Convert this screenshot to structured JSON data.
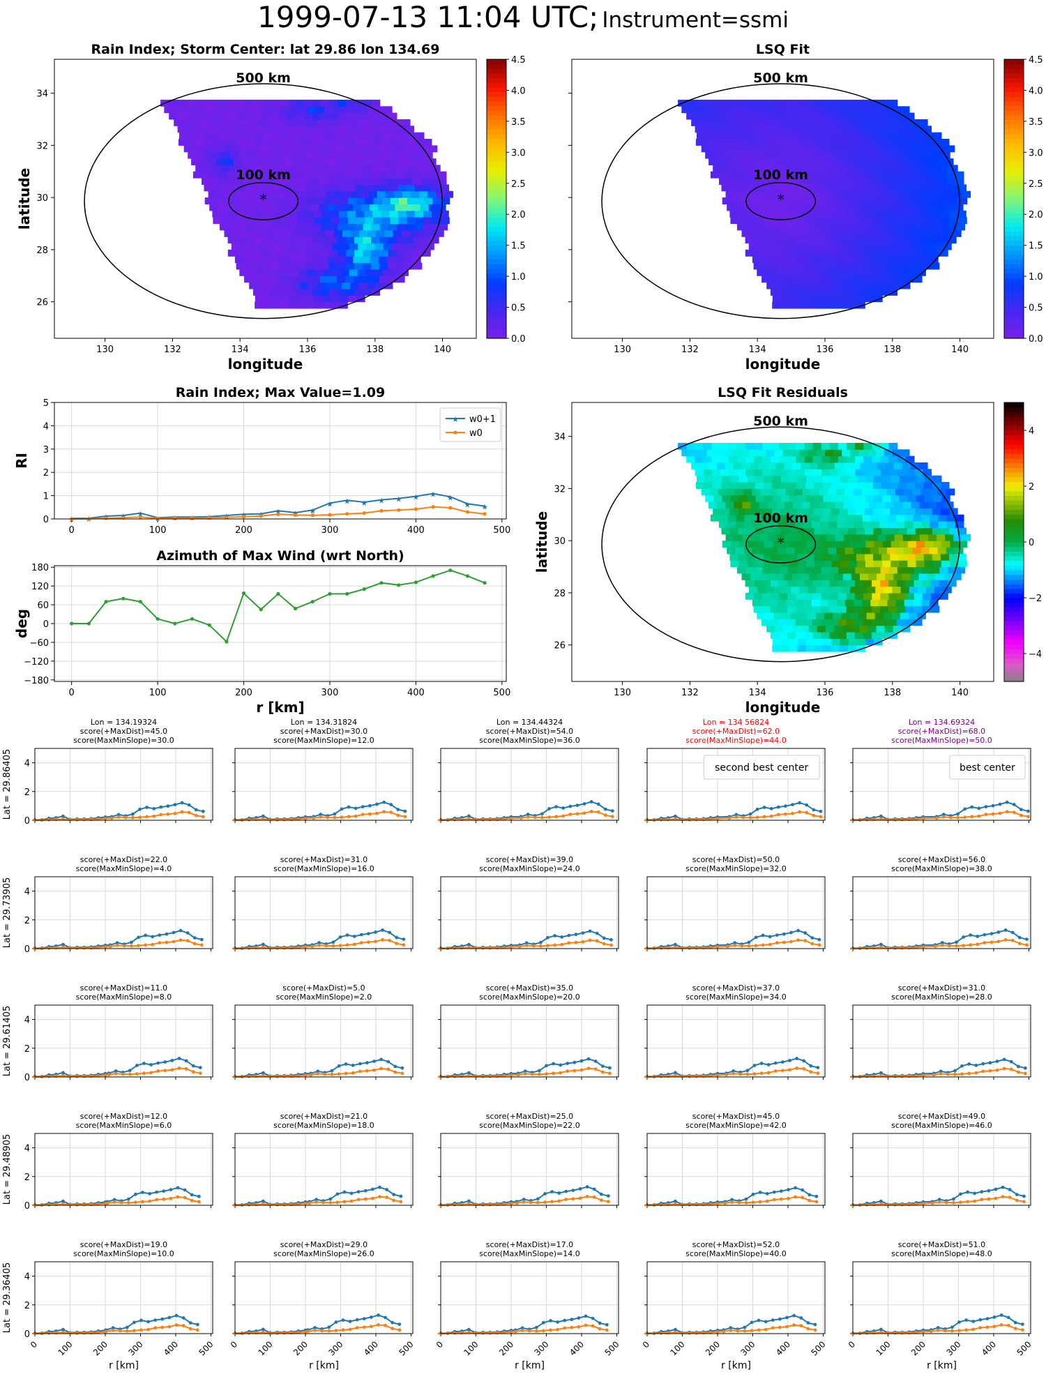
{
  "suptitle": {
    "time": "1999-07-13 11:04 UTC;",
    "instrument": "Instrument=ssmi"
  },
  "colors": {
    "w0p1": "#1f77b4",
    "w0": "#ff7f0e",
    "azimuth": "#2ca02c",
    "second_best": "#ff0000",
    "best": "#800080"
  },
  "chart_data": [
    {
      "id": "rain-index-map",
      "type": "heatmap",
      "title": "Rain Index; Storm Center: lat 29.86 lon 134.69",
      "xlabel": "longitude",
      "ylabel": "latitude",
      "xlim": [
        128.5,
        141
      ],
      "ylim": [
        24.6,
        35.3
      ],
      "xticks": [
        "130",
        "132",
        "134",
        "136",
        "138",
        "140"
      ],
      "yticks": [
        "26",
        "28",
        "30",
        "32",
        "34"
      ],
      "center": {
        "lon": 134.69,
        "lat": 29.86
      },
      "ring_labels": [
        "500 km",
        "100 km"
      ],
      "colorbar": {
        "min": 0,
        "max": 4.5,
        "ticks": [
          "0.0",
          "0.5",
          "1.0",
          "1.5",
          "2.0",
          "2.5",
          "3.0",
          "3.5",
          "4.0",
          "4.5"
        ],
        "colormap": "rainbow"
      }
    },
    {
      "id": "lsq-fit-map",
      "type": "heatmap",
      "title": "LSQ Fit",
      "xlabel": "longitude",
      "ylabel": "",
      "xlim": [
        128.5,
        141
      ],
      "ylim": [
        24.6,
        35.3
      ],
      "xticks": [
        "130",
        "132",
        "134",
        "136",
        "138",
        "140"
      ],
      "yticks": [],
      "center": {
        "lon": 134.69,
        "lat": 29.86
      },
      "ring_labels": [
        "500 km",
        "100 km"
      ],
      "colorbar": {
        "min": 0,
        "max": 4.5,
        "ticks": [
          "0.0",
          "0.5",
          "1.0",
          "1.5",
          "2.0",
          "2.5",
          "3.0",
          "3.5",
          "4.0",
          "4.5"
        ],
        "colormap": "rainbow"
      }
    },
    {
      "id": "lsq-residual-map",
      "type": "heatmap",
      "title": "LSQ Fit Residuals",
      "xlabel": "longitude",
      "ylabel": "latitude",
      "xlim": [
        128.5,
        141
      ],
      "ylim": [
        24.6,
        35.3
      ],
      "xticks": [
        "130",
        "132",
        "134",
        "136",
        "138",
        "140"
      ],
      "yticks": [
        "26",
        "28",
        "30",
        "32",
        "34"
      ],
      "center": {
        "lon": 134.69,
        "lat": 29.86
      },
      "ring_labels": [
        "500 km",
        "100 km"
      ],
      "colorbar": {
        "min": -5,
        "max": 5,
        "ticks": [
          "−4",
          "−2",
          "0",
          "2",
          "4"
        ],
        "colormap": "diverging"
      }
    },
    {
      "id": "rain-index-profile",
      "type": "line",
      "title": "Rain Index; Max Value=1.09",
      "xlabel": "",
      "ylabel": "RI",
      "xlim": [
        -20,
        505
      ],
      "ylim": [
        0,
        5
      ],
      "xticks": [
        "0",
        "100",
        "200",
        "300",
        "400",
        "500"
      ],
      "yticks": [
        "0",
        "1",
        "2",
        "3",
        "4",
        "5"
      ],
      "legend": "top-right",
      "x": [
        0,
        20,
        40,
        60,
        80,
        100,
        120,
        140,
        160,
        180,
        200,
        220,
        240,
        260,
        280,
        300,
        320,
        340,
        360,
        380,
        400,
        420,
        440,
        460,
        480
      ],
      "series": [
        {
          "name": "w0+1",
          "values": [
            0.02,
            0.03,
            0.12,
            0.15,
            0.25,
            0.05,
            0.08,
            0.08,
            0.1,
            0.15,
            0.2,
            0.22,
            0.35,
            0.27,
            0.38,
            0.68,
            0.8,
            0.72,
            0.82,
            0.88,
            0.97,
            1.09,
            0.95,
            0.65,
            0.55
          ]
        },
        {
          "name": "w0",
          "values": [
            0,
            0.01,
            0.03,
            0.05,
            0.08,
            0.02,
            0.03,
            0.04,
            0.05,
            0.07,
            0.1,
            0.13,
            0.2,
            0.17,
            0.16,
            0.18,
            0.22,
            0.25,
            0.35,
            0.38,
            0.42,
            0.52,
            0.48,
            0.3,
            0.22
          ]
        }
      ]
    },
    {
      "id": "azimuth-max-wind",
      "type": "line",
      "title": "Azimuth of Max Wind (wrt North)",
      "xlabel": "r [km]",
      "ylabel": "deg",
      "xlim": [
        -20,
        505
      ],
      "ylim": [
        -185,
        185
      ],
      "xticks": [
        "0",
        "100",
        "200",
        "300",
        "400",
        "500"
      ],
      "yticks": [
        "180",
        "120",
        "60",
        "0",
        "−60",
        "−120",
        "−180"
      ],
      "x": [
        0,
        20,
        40,
        60,
        80,
        100,
        120,
        140,
        160,
        180,
        200,
        220,
        240,
        260,
        280,
        300,
        320,
        340,
        360,
        380,
        400,
        420,
        440,
        460,
        480
      ],
      "series": [
        {
          "values": [
            0,
            0,
            70,
            80,
            70,
            15,
            0,
            15,
            -5,
            -58,
            97,
            45,
            95,
            48,
            70,
            95,
            95,
            110,
            130,
            123,
            132,
            152,
            170,
            152,
            130
          ]
        }
      ]
    }
  ],
  "grid": {
    "lon_titles": [
      "Lon = 134.19324",
      "Lon = 134.31824",
      "Lon = 134.44324",
      "Lon = 134 56824",
      "Lon = 134.69324"
    ],
    "lat_labels": [
      "Lat = 29.86405",
      "Lat = 29.73905",
      "Lat = 29.61405",
      "Lat = 29.48905",
      "Lat = 29.36405"
    ],
    "scores": [
      [
        [
          "score(+MaxDist)=45.0",
          "score(MaxMinSlope)=30.0"
        ],
        [
          "score(+MaxDist)=30.0",
          "score(MaxMinSlope)=12.0"
        ],
        [
          "score(+MaxDist)=54.0",
          "score(MaxMinSlope)=36.0"
        ],
        [
          "score(+MaxDist)=62.0",
          "score(MaxMinSlope)=44.0"
        ],
        [
          "score(+MaxDist)=68.0",
          "score(MaxMinSlope)=50.0"
        ]
      ],
      [
        [
          "score(+MaxDist)=22.0",
          "score(MaxMinSlope)=4.0"
        ],
        [
          "score(+MaxDist)=31.0",
          "score(MaxMinSlope)=16.0"
        ],
        [
          "score(+MaxDist)=39.0",
          "score(MaxMinSlope)=24.0"
        ],
        [
          "score(+MaxDist)=50.0",
          "score(MaxMinSlope)=32.0"
        ],
        [
          "score(+MaxDist)=56.0",
          "score(MaxMinSlope)=38.0"
        ]
      ],
      [
        [
          "score(+MaxDist)=11.0",
          "score(MaxMinSlope)=8.0"
        ],
        [
          "score(+MaxDist)=5.0",
          "score(MaxMinSlope)=2.0"
        ],
        [
          "score(+MaxDist)=35.0",
          "score(MaxMinSlope)=20.0"
        ],
        [
          "score(+MaxDist)=37.0",
          "score(MaxMinSlope)=34.0"
        ],
        [
          "score(+MaxDist)=31.0",
          "score(MaxMinSlope)=28.0"
        ]
      ],
      [
        [
          "score(+MaxDist)=12.0",
          "score(MaxMinSlope)=6.0"
        ],
        [
          "score(+MaxDist)=21.0",
          "score(MaxMinSlope)=18.0"
        ],
        [
          "score(+MaxDist)=25.0",
          "score(MaxMinSlope)=22.0"
        ],
        [
          "score(+MaxDist)=45.0",
          "score(MaxMinSlope)=42.0"
        ],
        [
          "score(+MaxDist)=49.0",
          "score(MaxMinSlope)=46.0"
        ]
      ],
      [
        [
          "score(+MaxDist)=19.0",
          "score(MaxMinSlope)=10.0"
        ],
        [
          "score(+MaxDist)=29.0",
          "score(MaxMinSlope)=26.0"
        ],
        [
          "score(+MaxDist)=17.0",
          "score(MaxMinSlope)=14.0"
        ],
        [
          "score(+MaxDist)=52.0",
          "score(MaxMinSlope)=40.0"
        ],
        [
          "score(+MaxDist)=51.0",
          "score(MaxMinSlope)=48.0"
        ]
      ]
    ],
    "legend_boxes": [
      {
        "row": 0,
        "col": 3,
        "text": "second best center"
      },
      {
        "row": 0,
        "col": 4,
        "text": "best center"
      }
    ],
    "xlim": [
      0,
      505
    ],
    "ylim": [
      0,
      5
    ],
    "xticks": [
      "0",
      "100",
      "200",
      "300",
      "400",
      "500"
    ],
    "yticks": [
      "0",
      "2",
      "4"
    ],
    "xlabel": "r [km]",
    "profile_x": [
      0,
      20,
      40,
      60,
      80,
      100,
      120,
      140,
      160,
      180,
      200,
      220,
      240,
      260,
      280,
      300,
      320,
      340,
      360,
      380,
      400,
      420,
      440,
      460,
      480
    ],
    "profile_w0p1": [
      0.02,
      0.03,
      0.12,
      0.15,
      0.25,
      0.05,
      0.08,
      0.08,
      0.1,
      0.15,
      0.2,
      0.22,
      0.35,
      0.27,
      0.38,
      0.68,
      0.8,
      0.72,
      0.82,
      0.88,
      0.97,
      1.09,
      0.95,
      0.65,
      0.55
    ],
    "profile_w0": [
      0,
      0.01,
      0.03,
      0.05,
      0.08,
      0.02,
      0.03,
      0.04,
      0.05,
      0.07,
      0.1,
      0.13,
      0.2,
      0.17,
      0.16,
      0.18,
      0.22,
      0.25,
      0.35,
      0.38,
      0.42,
      0.52,
      0.48,
      0.3,
      0.22
    ]
  }
}
